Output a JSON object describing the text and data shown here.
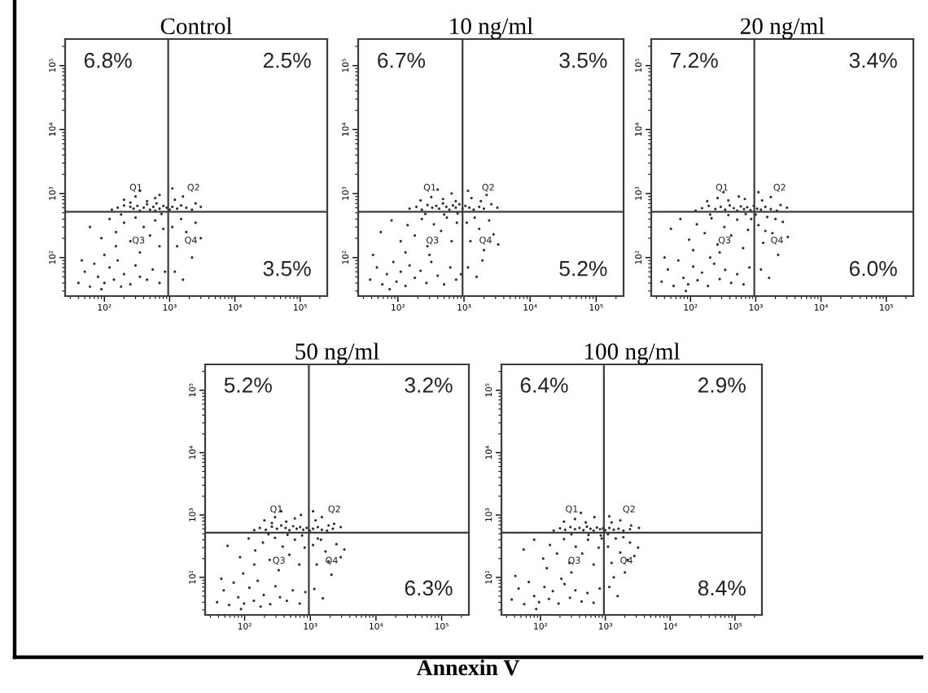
{
  "chart_data": [
    {
      "type": "scatter",
      "title": "Control",
      "color": "#2e2e2e",
      "log": "xy",
      "xlim": [
        25,
        260000
      ],
      "ylim": [
        25,
        260000
      ],
      "xticks": [
        {
          "value": 100,
          "label": "10²"
        },
        {
          "value": 1000,
          "label": "10³"
        },
        {
          "value": 10000,
          "label": "10⁴"
        },
        {
          "value": 100000,
          "label": "10⁵"
        }
      ],
      "yticks": [
        {
          "value": 100,
          "label": "10²"
        },
        {
          "value": 1000,
          "label": "10³"
        },
        {
          "value": 10000,
          "label": "10⁴"
        },
        {
          "value": 100000,
          "label": "10⁵"
        }
      ],
      "ref_lines": [
        {
          "axis": "x",
          "value": 950,
          "color": "#3c3c3c"
        },
        {
          "axis": "y",
          "value": 520,
          "color": "#3c3c3c"
        }
      ],
      "annotations": [
        "6.8%",
        "2.5%",
        "3.5%",
        "Q1",
        "Q2",
        "Q3",
        "Q4"
      ],
      "x": [
        130,
        160,
        200,
        250,
        280,
        320,
        400,
        450,
        500,
        560,
        630,
        700,
        800,
        900,
        1000,
        1100,
        1300,
        1500,
        1800,
        2200,
        350,
        600,
        750,
        180,
        200,
        300,
        450,
        600,
        350,
        700,
        250,
        1200,
        1600,
        2500,
        1100,
        3000,
        60,
        90,
        120,
        150,
        200,
        250,
        300,
        400,
        500,
        600,
        700,
        800,
        350,
        150,
        100,
        40,
        50,
        60,
        70,
        80,
        100,
        120,
        140,
        160,
        200,
        250,
        300,
        350,
        450,
        550,
        700,
        850,
        45,
        90,
        180,
        1100,
        1300,
        1500,
        1800,
        2200,
        2500,
        1200,
        3000,
        1600
      ],
      "values": [
        560,
        600,
        650,
        620,
        580,
        640,
        600,
        680,
        560,
        620,
        700,
        580,
        640,
        600,
        560,
        620,
        580,
        650,
        600,
        560,
        540,
        540,
        480,
        470,
        800,
        900,
        760,
        850,
        1100,
        950,
        720,
        800,
        900,
        700,
        1200,
        620,
        300,
        200,
        400,
        250,
        350,
        180,
        420,
        300,
        220,
        380,
        150,
        280,
        120,
        150,
        110,
        40,
        60,
        35,
        80,
        50,
        40,
        70,
        45,
        90,
        55,
        38,
        75,
        50,
        45,
        65,
        40,
        60,
        90,
        32,
        35,
        300,
        150,
        400,
        250,
        100,
        350,
        60,
        200,
        45
      ]
    },
    {
      "type": "scatter",
      "title": "10 ng/ml",
      "color": "#2e2e2e",
      "log": "xy",
      "xlim": [
        25,
        260000
      ],
      "ylim": [
        25,
        260000
      ],
      "xticks": [
        {
          "value": 100,
          "label": "10²"
        },
        {
          "value": 1000,
          "label": "10³"
        },
        {
          "value": 10000,
          "label": "10⁴"
        },
        {
          "value": 100000,
          "label": "10⁵"
        }
      ],
      "yticks": [
        {
          "value": 100,
          "label": "10²"
        },
        {
          "value": 1000,
          "label": "10³"
        },
        {
          "value": 10000,
          "label": "10⁴"
        },
        {
          "value": 100000,
          "label": "10⁵"
        }
      ],
      "ref_lines": [
        {
          "axis": "x",
          "value": 950,
          "color": "#3c3c3c"
        },
        {
          "axis": "y",
          "value": 520,
          "color": "#3c3c3c"
        }
      ],
      "annotations": [
        "6.7%",
        "3.5%",
        "5.2%",
        "Q1",
        "Q2",
        "Q3",
        "Q4"
      ],
      "x": [
        150,
        190,
        230,
        280,
        330,
        380,
        420,
        480,
        540,
        600,
        680,
        750,
        850,
        950,
        1050,
        1200,
        1400,
        1700,
        2000,
        260,
        500,
        800,
        220,
        320,
        480,
        650,
        400,
        750,
        1300,
        1800,
        2600,
        1150,
        3200,
        2200,
        55,
        80,
        110,
        140,
        180,
        230,
        280,
        350,
        450,
        550,
        650,
        780,
        300,
        130,
        38,
        48,
        58,
        68,
        85,
        95,
        110,
        130,
        150,
        180,
        220,
        270,
        320,
        400,
        500,
        620,
        760,
        900,
        42,
        75,
        1100,
        1250,
        1450,
        1700,
        2000,
        2400,
        1150,
        2800,
        1550,
        3300,
        1900
      ],
      "values": [
        580,
        620,
        560,
        660,
        600,
        640,
        580,
        700,
        620,
        560,
        650,
        600,
        680,
        580,
        640,
        600,
        560,
        620,
        580,
        480,
        470,
        490,
        780,
        880,
        820,
        1000,
        1150,
        760,
        850,
        760,
        680,
        1100,
        600,
        950,
        250,
        380,
        180,
        320,
        220,
        400,
        150,
        330,
        260,
        420,
        180,
        350,
        110,
        120,
        45,
        70,
        38,
        55,
        85,
        42,
        60,
        36,
        75,
        48,
        62,
        40,
        85,
        52,
        38,
        70,
        45,
        55,
        110,
        32,
        350,
        180,
        420,
        280,
        130,
        380,
        70,
        230,
        50,
        160,
        90
      ]
    },
    {
      "type": "scatter",
      "title": "20 ng/ml",
      "color": "#2e2e2e",
      "log": "xy",
      "xlim": [
        25,
        260000
      ],
      "ylim": [
        25,
        260000
      ],
      "xticks": [
        {
          "value": 100,
          "label": "10²"
        },
        {
          "value": 1000,
          "label": "10³"
        },
        {
          "value": 10000,
          "label": "10⁴"
        },
        {
          "value": 100000,
          "label": "10⁵"
        }
      ],
      "yticks": [
        {
          "value": 100,
          "label": "10²"
        },
        {
          "value": 1000,
          "label": "10³"
        },
        {
          "value": 10000,
          "label": "10⁴"
        },
        {
          "value": 100000,
          "label": "10⁵"
        }
      ],
      "ref_lines": [
        {
          "axis": "x",
          "value": 950,
          "color": "#3c3c3c"
        },
        {
          "axis": "y",
          "value": 520,
          "color": "#3c3c3c"
        }
      ],
      "annotations": [
        "7.2%",
        "3.4%",
        "6.0%",
        "Q1",
        "Q2",
        "Q3",
        "Q4"
      ],
      "x": [
        120,
        150,
        190,
        240,
        290,
        340,
        400,
        460,
        520,
        590,
        660,
        740,
        830,
        930,
        1050,
        1200,
        1400,
        1700,
        2100,
        200,
        380,
        700,
        1000,
        180,
        260,
        380,
        550,
        320,
        680,
        1250,
        1700,
        2400,
        1100,
        3000,
        50,
        70,
        95,
        125,
        165,
        210,
        260,
        330,
        420,
        520,
        640,
        760,
        280,
        110,
        850,
        36,
        45,
        55,
        65,
        78,
        92,
        110,
        128,
        150,
        185,
        230,
        280,
        340,
        420,
        520,
        650,
        800,
        40,
        85,
        200,
        1100,
        1300,
        1500,
        1800,
        2200,
        2600,
        1200,
        3100,
        1600,
        2000,
        1400
      ],
      "values": [
        540,
        590,
        640,
        570,
        620,
        560,
        650,
        590,
        540,
        630,
        570,
        610,
        550,
        640,
        580,
        560,
        620,
        570,
        540,
        470,
        460,
        480,
        470,
        760,
        850,
        780,
        900,
        1050,
        820,
        780,
        880,
        660,
        1050,
        600,
        280,
        400,
        190,
        330,
        240,
        410,
        160,
        300,
        220,
        390,
        140,
        270,
        120,
        130,
        400,
        42,
        65,
        36,
        90,
        48,
        38,
        72,
        44,
        58,
        36,
        80,
        46,
        64,
        40,
        55,
        38,
        70,
        100,
        30,
        100,
        320,
        170,
        430,
        240,
        110,
        360,
        65,
        210,
        48,
        400,
        260
      ]
    },
    {
      "type": "scatter",
      "title": "50 ng/ml",
      "color": "#2e2e2e",
      "log": "xy",
      "xlim": [
        25,
        260000
      ],
      "ylim": [
        25,
        260000
      ],
      "xticks": [
        {
          "value": 100,
          "label": "10²"
        },
        {
          "value": 1000,
          "label": "10³"
        },
        {
          "value": 10000,
          "label": "10⁴"
        },
        {
          "value": 100000,
          "label": "10⁵"
        }
      ],
      "yticks": [
        {
          "value": 100,
          "label": "10²"
        },
        {
          "value": 1000,
          "label": "10³"
        },
        {
          "value": 10000,
          "label": "10⁴"
        },
        {
          "value": 100000,
          "label": "10⁵"
        }
      ],
      "ref_lines": [
        {
          "axis": "x",
          "value": 950,
          "color": "#3c3c3c"
        },
        {
          "axis": "y",
          "value": 520,
          "color": "#3c3c3c"
        }
      ],
      "annotations": [
        "5.2%",
        "3.2%",
        "6.3%",
        "Q1",
        "Q2",
        "Q3",
        "Q4"
      ],
      "x": [
        140,
        170,
        210,
        260,
        310,
        360,
        420,
        480,
        550,
        620,
        700,
        780,
        880,
        980,
        1100,
        1300,
        1500,
        1800,
        2200,
        230,
        450,
        750,
        200,
        290,
        430,
        580,
        360,
        720,
        260,
        1200,
        1500,
        2300,
        1100,
        2900,
        1900,
        55,
        85,
        115,
        145,
        190,
        240,
        290,
        380,
        480,
        580,
        680,
        820,
        330,
        140,
        95,
        38,
        48,
        58,
        68,
        80,
        98,
        118,
        138,
        158,
        195,
        245,
        295,
        345,
        440,
        540,
        690,
        840,
        44,
        88,
        175,
        1100,
        1250,
        1450,
        1700,
        2100,
        2500,
        1150,
        2900,
        1550,
        1900,
        1300,
        3300
      ],
      "values": [
        570,
        620,
        580,
        650,
        600,
        680,
        620,
        570,
        660,
        600,
        640,
        580,
        620,
        560,
        600,
        640,
        580,
        560,
        600,
        490,
        480,
        470,
        820,
        920,
        780,
        880,
        1150,
        1000,
        740,
        820,
        920,
        720,
        1150,
        640,
        680,
        320,
        210,
        420,
        270,
        360,
        190,
        430,
        310,
        230,
        400,
        160,
        300,
        130,
        160,
        115,
        40,
        62,
        36,
        82,
        48,
        38,
        68,
        42,
        88,
        52,
        37,
        72,
        48,
        42,
        62,
        38,
        58,
        95,
        31,
        34,
        330,
        160,
        400,
        260,
        110,
        340,
        65,
        210,
        46,
        180,
        420,
        280
      ]
    },
    {
      "type": "scatter",
      "title": "100 ng/ml",
      "color": "#2e2e2e",
      "log": "xy",
      "xlim": [
        25,
        260000
      ],
      "ylim": [
        25,
        260000
      ],
      "xticks": [
        {
          "value": 100,
          "label": "10²"
        },
        {
          "value": 1000,
          "label": "10³"
        },
        {
          "value": 10000,
          "label": "10⁴"
        },
        {
          "value": 100000,
          "label": "10⁵"
        }
      ],
      "yticks": [
        {
          "value": 100,
          "label": "10²"
        },
        {
          "value": 1000,
          "label": "10³"
        },
        {
          "value": 10000,
          "label": "10⁴"
        },
        {
          "value": 100000,
          "label": "10⁵"
        }
      ],
      "ref_lines": [
        {
          "axis": "x",
          "value": 950,
          "color": "#3c3c3c"
        },
        {
          "axis": "y",
          "value": 520,
          "color": "#3c3c3c"
        }
      ],
      "annotations": [
        "6.4%",
        "2.9%",
        "8.4%",
        "Q1",
        "Q2",
        "Q3",
        "Q4"
      ],
      "x": [
        160,
        200,
        240,
        290,
        340,
        400,
        460,
        520,
        590,
        660,
        740,
        830,
        920,
        1000,
        1150,
        1350,
        1600,
        1900,
        2400,
        300,
        550,
        850,
        1100,
        230,
        340,
        500,
        680,
        420,
        1250,
        1700,
        2500,
        1150,
        3300,
        55,
        80,
        110,
        140,
        180,
        230,
        280,
        350,
        440,
        540,
        660,
        790,
        300,
        125,
        880,
        36,
        46,
        56,
        66,
        80,
        95,
        115,
        135,
        155,
        190,
        235,
        285,
        345,
        430,
        530,
        660,
        820,
        41,
        86,
        210,
        1100,
        1250,
        1450,
        1700,
        2000,
        2400,
        1150,
        2800,
        1550,
        3200,
        1900,
        1350,
        2200
      ],
      "values": [
        560,
        610,
        580,
        640,
        590,
        620,
        570,
        650,
        600,
        560,
        630,
        590,
        610,
        570,
        620,
        580,
        600,
        560,
        590,
        490,
        480,
        470,
        490,
        780,
        860,
        760,
        920,
        1080,
        760,
        820,
        680,
        950,
        620,
        280,
        400,
        200,
        330,
        240,
        410,
        170,
        310,
        240,
        400,
        160,
        300,
        120,
        140,
        420,
        44,
        66,
        37,
        84,
        50,
        40,
        70,
        45,
        60,
        38,
        78,
        47,
        62,
        41,
        56,
        39,
        66,
        105,
        31,
        95,
        310,
        170,
        420,
        250,
        120,
        360,
        70,
        220,
        50,
        300,
        440,
        100,
        190
      ]
    },
    {
      "type": "other",
      "xlabel": "Annexin V"
    }
  ]
}
